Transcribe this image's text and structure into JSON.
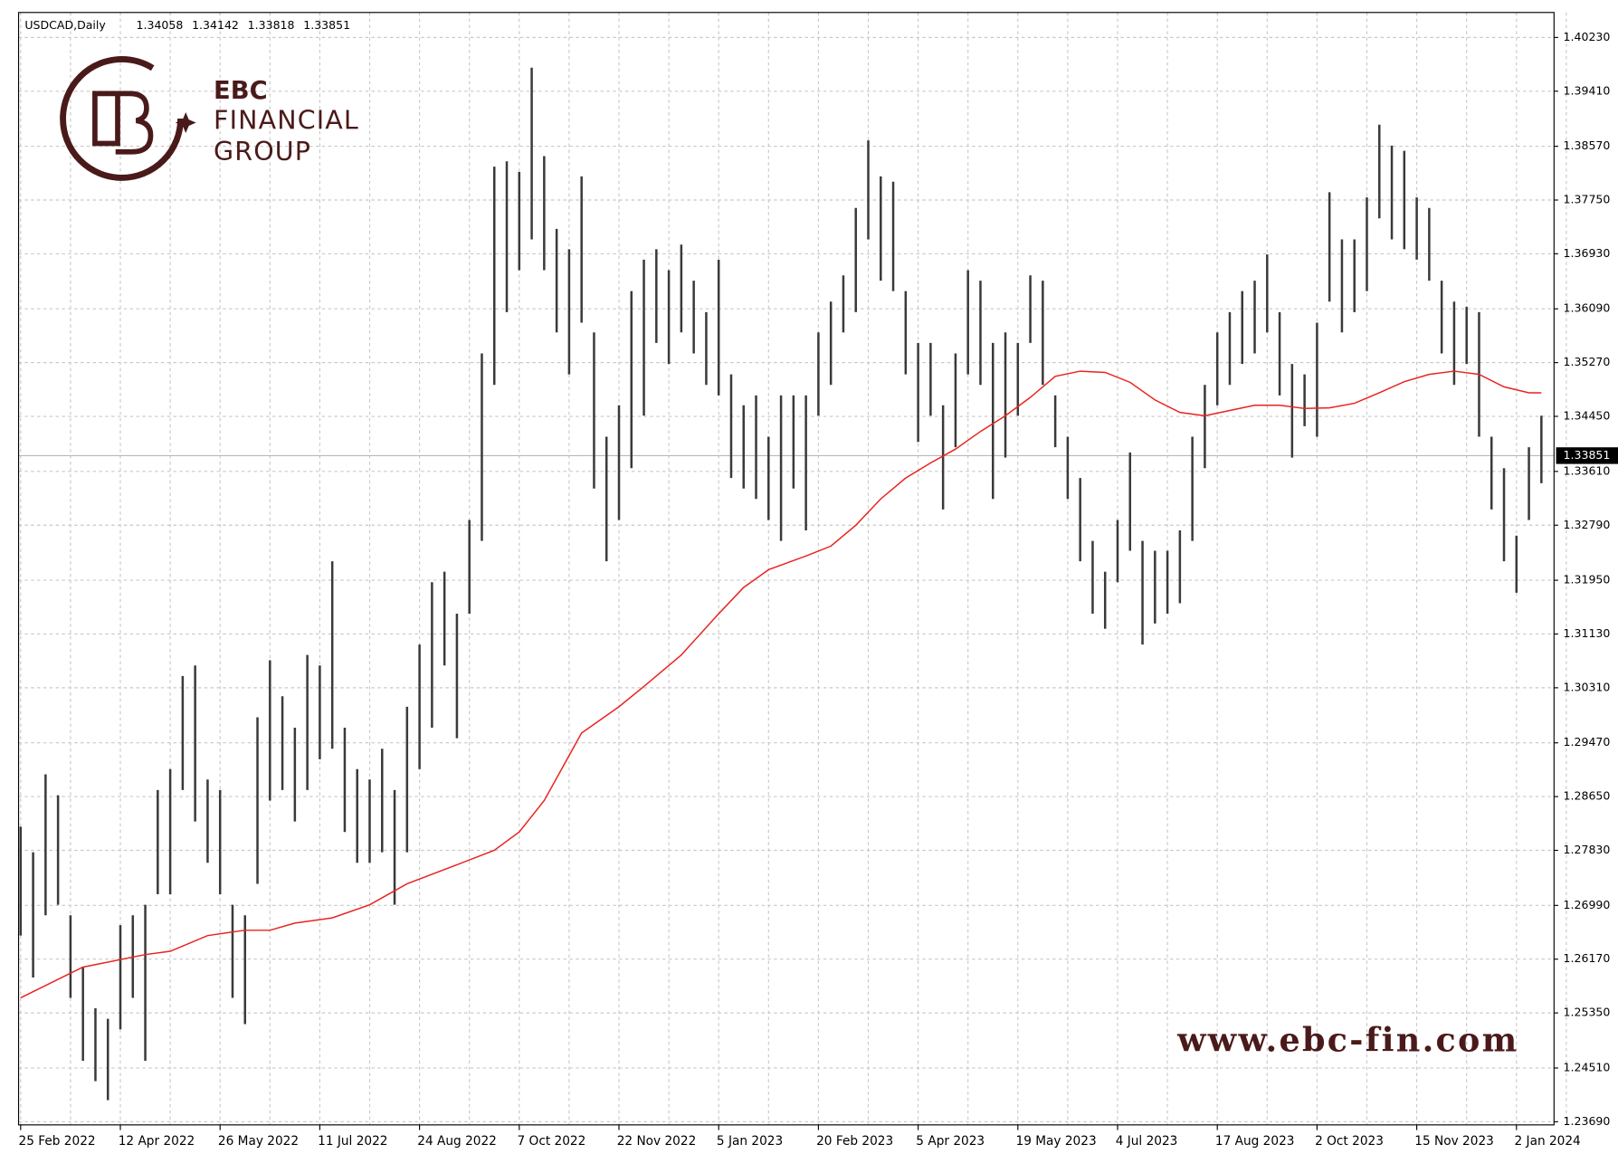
{
  "chart_data": {
    "type": "ohlc",
    "symbol_label": "USDCAD,Daily",
    "header_values": [
      1.34058,
      1.34142,
      1.33818,
      1.33851
    ],
    "last": 1.33851,
    "color": "#3a3a3a",
    "grid": true,
    "categories": [
      "25 Feb 2022",
      null,
      null,
      null,
      null,
      null,
      null,
      null,
      "12 Apr 2022",
      null,
      null,
      null,
      null,
      null,
      null,
      null,
      "26 May 2022",
      null,
      null,
      null,
      null,
      null,
      null,
      null,
      "11 Jul 2022",
      null,
      null,
      null,
      null,
      null,
      null,
      null,
      "24 Aug 2022",
      null,
      null,
      null,
      null,
      null,
      null,
      null,
      "7 Oct 2022",
      null,
      null,
      null,
      null,
      null,
      null,
      null,
      "22 Nov 2022",
      null,
      null,
      null,
      null,
      null,
      null,
      null,
      "5 Jan 2023",
      null,
      null,
      null,
      null,
      null,
      null,
      null,
      "20 Feb 2023",
      null,
      null,
      null,
      null,
      null,
      null,
      null,
      "5 Apr 2023",
      null,
      null,
      null,
      null,
      null,
      null,
      null,
      "19 May 2023",
      null,
      null,
      null,
      null,
      null,
      null,
      null,
      "4 Jul 2023",
      null,
      null,
      null,
      null,
      null,
      null,
      null,
      "17 Aug 2023",
      null,
      null,
      null,
      null,
      null,
      null,
      null,
      "2 Oct 2023",
      null,
      null,
      null,
      null,
      null,
      null,
      null,
      "15 Nov 2023",
      null,
      null,
      null,
      null,
      null,
      null,
      null,
      "2 Jan 2024",
      null,
      null
    ],
    "high": [
      1.2819,
      1.278,
      1.2899,
      1.2867,
      1.2684,
      1.2605,
      1.2542,
      1.2526,
      1.2669,
      1.2684,
      1.27,
      1.2875,
      1.2907,
      1.3049,
      1.3065,
      1.2891,
      1.2875,
      1.27,
      1.2684,
      1.2986,
      1.3073,
      1.3018,
      1.297,
      1.3081,
      1.3065,
      1.3224,
      1.297,
      1.2907,
      1.2891,
      1.2938,
      1.2875,
      1.3002,
      1.3097,
      1.3192,
      1.3208,
      1.3144,
      1.3287,
      1.3541,
      1.3826,
      1.3834,
      1.3818,
      1.3977,
      1.3842,
      1.3731,
      1.37,
      1.3811,
      1.3573,
      1.3414,
      1.3462,
      1.3636,
      1.3684,
      1.37,
      1.3668,
      1.3707,
      1.3652,
      1.3604,
      1.3684,
      1.3509,
      1.3462,
      1.3477,
      1.3414,
      1.3477,
      1.3477,
      1.3477,
      1.3573,
      1.362,
      1.366,
      1.3763,
      1.3866,
      1.3811,
      1.3803,
      1.3636,
      1.3557,
      1.3557,
      1.3462,
      1.3541,
      1.3668,
      1.3652,
      1.3557,
      1.3573,
      1.3557,
      1.366,
      1.3652,
      1.3477,
      1.3414,
      1.3351,
      1.3255,
      1.3208,
      1.3287,
      1.339,
      1.3255,
      1.324,
      1.324,
      1.3271,
      1.3414,
      1.3493,
      1.3573,
      1.3604,
      1.3636,
      1.3652,
      1.3692,
      1.3604,
      1.3525,
      1.3509,
      1.3588,
      1.3787,
      1.3715,
      1.3715,
      1.3779,
      1.389,
      1.3858,
      1.385,
      1.3779,
      1.3763,
      1.3652,
      1.362,
      1.3612,
      1.3604,
      1.3414,
      1.3366,
      1.3263,
      1.3398,
      1.3446
    ],
    "low": [
      1.2653,
      1.2589,
      1.2684,
      1.27,
      1.2558,
      1.2462,
      1.2431,
      1.2402,
      1.251,
      1.2558,
      1.2462,
      1.2716,
      1.2716,
      1.2875,
      1.2827,
      1.2764,
      1.2716,
      1.2558,
      1.2518,
      1.2732,
      1.2859,
      1.2875,
      1.2827,
      1.2875,
      1.2922,
      1.2938,
      1.2811,
      1.2764,
      1.2764,
      1.278,
      1.27,
      1.278,
      1.2907,
      1.297,
      1.3065,
      1.2954,
      1.3144,
      1.3255,
      1.3493,
      1.3604,
      1.3668,
      1.3715,
      1.3668,
      1.3573,
      1.3509,
      1.3588,
      1.3335,
      1.3224,
      1.3287,
      1.3366,
      1.3446,
      1.3557,
      1.3525,
      1.3573,
      1.3541,
      1.3493,
      1.3477,
      1.3351,
      1.3335,
      1.3319,
      1.3287,
      1.3255,
      1.3335,
      1.3271,
      1.3446,
      1.3493,
      1.3573,
      1.3604,
      1.3715,
      1.3652,
      1.3636,
      1.3509,
      1.3406,
      1.3446,
      1.3303,
      1.3398,
      1.3509,
      1.3493,
      1.3319,
      1.3382,
      1.3446,
      1.3557,
      1.3493,
      1.3398,
      1.3319,
      1.3224,
      1.3144,
      1.3121,
      1.3192,
      1.324,
      1.3097,
      1.3129,
      1.3144,
      1.316,
      1.3255,
      1.3366,
      1.3462,
      1.3493,
      1.3525,
      1.3541,
      1.3573,
      1.3477,
      1.3382,
      1.343,
      1.3414,
      1.362,
      1.3573,
      1.3604,
      1.3636,
      1.3747,
      1.3715,
      1.37,
      1.3684,
      1.3652,
      1.3541,
      1.3493,
      1.3525,
      1.3414,
      1.3303,
      1.3224,
      1.3176,
      1.3287,
      1.3343
    ],
    "ma": {
      "color": "#e8231e",
      "x": [
        0,
        5,
        10,
        12,
        15,
        18,
        20,
        22,
        25,
        28,
        31,
        35,
        38,
        40,
        42,
        45,
        48,
        50,
        53,
        56,
        58,
        60,
        63,
        65,
        67,
        69,
        71,
        73,
        75,
        77,
        79,
        81,
        83,
        85,
        87,
        89,
        91,
        93,
        95,
        97,
        99,
        101,
        103,
        105,
        107,
        109,
        111,
        113,
        115,
        117,
        119,
        121,
        122
      ],
      "values": [
        1.2558,
        1.2605,
        1.2624,
        1.2629,
        1.2653,
        1.2661,
        1.2661,
        1.2672,
        1.268,
        1.27,
        1.2732,
        1.2761,
        1.2783,
        1.2811,
        1.2859,
        1.2962,
        1.3002,
        1.3033,
        1.3081,
        1.3144,
        1.3184,
        1.3211,
        1.3232,
        1.3247,
        1.3279,
        1.3319,
        1.3351,
        1.3374,
        1.3395,
        1.3422,
        1.3446,
        1.3474,
        1.3506,
        1.3514,
        1.3512,
        1.3497,
        1.347,
        1.3451,
        1.3446,
        1.3454,
        1.3462,
        1.3462,
        1.3457,
        1.3458,
        1.3465,
        1.3481,
        1.3498,
        1.3509,
        1.3514,
        1.3509,
        1.349,
        1.3481,
        1.3481
      ]
    },
    "ylim": [
      1.23642,
      1.40611
    ],
    "yticks": [
      {
        "value": 1.4023,
        "label": "1.40230"
      },
      {
        "value": 1.3941,
        "label": "1.39410"
      },
      {
        "value": 1.3857,
        "label": "1.38570"
      },
      {
        "value": 1.3775,
        "label": "1.37750"
      },
      {
        "value": 1.3693,
        "label": "1.36930"
      },
      {
        "value": 1.3609,
        "label": "1.36090"
      },
      {
        "value": 1.3527,
        "label": "1.35270"
      },
      {
        "value": 1.3445,
        "label": "1.34450"
      },
      {
        "value": 1.3361,
        "label": "1.33610"
      },
      {
        "value": 1.3279,
        "label": "1.32790"
      },
      {
        "value": 1.3195,
        "label": "1.31950"
      },
      {
        "value": 1.3113,
        "label": "1.31130"
      },
      {
        "value": 1.3031,
        "label": "1.30310"
      },
      {
        "value": 1.2947,
        "label": "1.29470"
      },
      {
        "value": 1.2865,
        "label": "1.28650"
      },
      {
        "value": 1.2783,
        "label": "1.27830"
      },
      {
        "value": 1.2699,
        "label": "1.26990"
      },
      {
        "value": 1.2617,
        "label": "1.26170"
      },
      {
        "value": 1.2535,
        "label": "1.25350"
      },
      {
        "value": 1.2451,
        "label": "1.24510"
      },
      {
        "value": 1.2369,
        "label": "1.23690"
      }
    ]
  },
  "logo": {
    "line1": "EBC",
    "line2": "FINANCIAL",
    "line3": "GROUP"
  },
  "watermark": "www.ebc-fin.com"
}
